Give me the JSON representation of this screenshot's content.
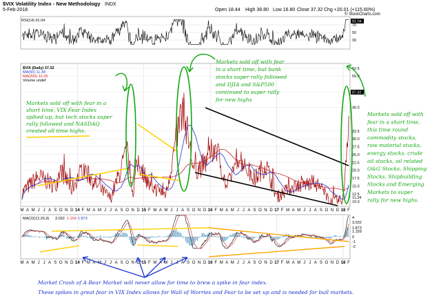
{
  "header": {
    "title": "$VIX Volatility Index - New Methodology",
    "exchange": "INDX",
    "date": "5-Feb-2018",
    "open": "Open 18.44",
    "high": "High 38.80",
    "low": "Low 16.80",
    "close": "Close 37.32",
    "chg": "Chg +20.01 (+115.60%)",
    "watermark": "© StockCharts.com"
  },
  "rsi_panel": {
    "label": "RSI(14) 91.04",
    "ticks": [
      "70",
      "50",
      "30"
    ],
    "last_label": "91.04"
  },
  "price_panel": {
    "legend": {
      "title": "$VIX (Daily) 37.32",
      "ma50": "MA(50) 11.34",
      "ma200": "MA(200) 12.25",
      "volume": "Volume undef"
    },
    "yticks": [
      "52.5",
      "50.0",
      "45.0",
      "40.0",
      "37.32",
      "32.5",
      "30.0",
      "27.5",
      "25.0",
      "22.5",
      "20.0",
      "17.5",
      "15.0",
      "12.5",
      "11.34",
      "10.0"
    ],
    "last_price_label": "37.32"
  },
  "macd_panel": {
    "label_prefix": "MACD(12,26,9)",
    "values": [
      "3.032",
      "1.159",
      "1.873"
    ],
    "ticks": [
      "4",
      "3.032",
      "1.873",
      "1.159",
      "0",
      "-1",
      "-2"
    ]
  },
  "x_axis": {
    "labels": [
      "M",
      "A",
      "M",
      "J",
      "J",
      "A",
      "S",
      "O",
      "N",
      "D",
      "14",
      "F",
      "M",
      "A",
      "M",
      "J",
      "J",
      "A",
      "S",
      "O",
      "N",
      "D",
      "15",
      "F",
      "M",
      "A",
      "M",
      "J",
      "J",
      "A",
      "S",
      "O",
      "N",
      "D",
      "16",
      "F",
      "M",
      "A",
      "M",
      "J",
      "J",
      "A",
      "S",
      "O",
      "N",
      "D",
      "17",
      "F",
      "M",
      "A",
      "M",
      "J",
      "J",
      "A",
      "S",
      "O",
      "N",
      "D",
      "18",
      "F"
    ],
    "bold": [
      "14",
      "15",
      "16",
      "17",
      "18"
    ]
  },
  "annotations": {
    "left": [
      "Markets sold off with fear in a",
      "short time, VIX Fear Index",
      "spiked up, but tech stocks super",
      "rally followed and NASDAQ",
      "created all time highs."
    ],
    "middle": [
      "Markets sold off with fear",
      "in a short time, but bank",
      "stocks super rally followed",
      "and DJIA and S&P500",
      "continued to super rally",
      "for new highs"
    ],
    "right": [
      "Markets sold off with",
      "fear in a short time,",
      "this time round",
      "commodity stocks,",
      "raw material stocks,",
      "energy stocks, crude",
      "oil stocks, oil related",
      "O&G Stocks, Shipping",
      "Stocks, Shipbuilding",
      "Stocks and Emerging",
      "Markets to super",
      "rally for new highs."
    ],
    "bottom": [
      "Market Crash of A Bear Market will never allow for time to brew a spike in fear index.",
      "These spikes in great fear in VIX Index allows for Wall of Worries and Fear to be set up and is needed for bull markets."
    ]
  },
  "colors": {
    "price": "#a00000",
    "ma50": "#2233cc",
    "ma200": "#cc2222",
    "annotation_green": "#11a611",
    "annotation_blue": "#1a33cc",
    "trend_yellow": "#ffd000",
    "trend_orange": "#ffa500",
    "trend_black": "#000000",
    "macd_hist": "#5aa0c8",
    "grid": "#cccccc"
  },
  "chart_data": {
    "type": "line",
    "title": "$VIX Volatility Index - New Methodology",
    "x_period": "Mar 2013 - Feb 2018 (daily)",
    "series": [
      {
        "name": "$VIX (Daily)",
        "last": 37.32
      },
      {
        "name": "MA(50)",
        "last": 11.34
      },
      {
        "name": "MA(200)",
        "last": 12.25
      },
      {
        "name": "RSI(14)",
        "last": 91.04
      },
      {
        "name": "MACD(12,26,9)",
        "last": 3.032
      },
      {
        "name": "MACD signal",
        "last": 1.159
      },
      {
        "name": "MACD histogram",
        "last": 1.873
      }
    ],
    "keyframes": [
      {
        "date": "2013-03",
        "vix": 13
      },
      {
        "date": "2013-06",
        "vix": 18
      },
      {
        "date": "2013-09",
        "vix": 15
      },
      {
        "date": "2013-10",
        "vix": 20
      },
      {
        "date": "2013-12",
        "vix": 14
      },
      {
        "date": "2014-02",
        "vix": 21
      },
      {
        "date": "2014-04",
        "vix": 16
      },
      {
        "date": "2014-07",
        "vix": 11
      },
      {
        "date": "2014-10",
        "vix": 26
      },
      {
        "date": "2014-11",
        "vix": 13
      },
      {
        "date": "2014-12",
        "vix": 23
      },
      {
        "date": "2015-02",
        "vix": 15
      },
      {
        "date": "2015-05",
        "vix": 12.5
      },
      {
        "date": "2015-08",
        "vix": 40.7
      },
      {
        "date": "2015-10",
        "vix": 20
      },
      {
        "date": "2015-12",
        "vix": 22
      },
      {
        "date": "2016-02",
        "vix": 28
      },
      {
        "date": "2016-04",
        "vix": 14
      },
      {
        "date": "2016-06",
        "vix": 25
      },
      {
        "date": "2016-09",
        "vix": 17
      },
      {
        "date": "2016-11",
        "vix": 22
      },
      {
        "date": "2017-01",
        "vix": 11.5
      },
      {
        "date": "2017-04",
        "vix": 15
      },
      {
        "date": "2017-08",
        "vix": 16
      },
      {
        "date": "2017-11",
        "vix": 10
      },
      {
        "date": "2018-01",
        "vix": 10.5
      },
      {
        "date": "2018-02",
        "vix": 37.32
      }
    ]
  }
}
